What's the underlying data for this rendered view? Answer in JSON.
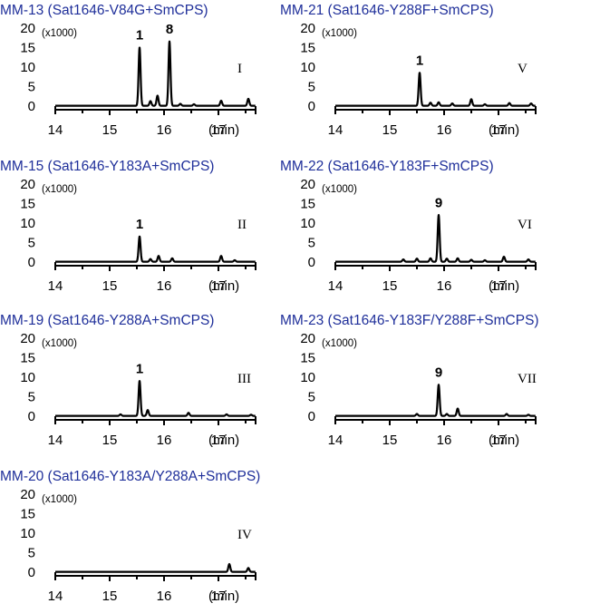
{
  "chart_data": [
    {
      "type": "line",
      "title": "MM-13 (Sat1646-V84G+SmCPS)",
      "panel_label": "I",
      "x_ticks": [
        "14",
        "15",
        "16",
        "17"
      ],
      "x_unit": "(min)",
      "xlim": [
        14,
        19
      ],
      "y_ticks": [
        "0",
        "5",
        "10",
        "15",
        "20"
      ],
      "y_scale": "(x1000)",
      "ylim": [
        0,
        20
      ],
      "peaks": [
        {
          "x": 15.55,
          "y": 15.0,
          "label": "1"
        },
        {
          "x": 15.75,
          "y": 1.2
        },
        {
          "x": 15.88,
          "y": 2.6
        },
        {
          "x": 16.1,
          "y": 16.5,
          "label": "8"
        },
        {
          "x": 16.3,
          "y": 0.5
        },
        {
          "x": 16.55,
          "y": 0.4
        },
        {
          "x": 17.05,
          "y": 1.3
        },
        {
          "x": 17.55,
          "y": 1.8
        }
      ]
    },
    {
      "type": "line",
      "title": "MM-21 (Sat1646-Y288F+SmCPS)",
      "panel_label": "V",
      "x_ticks": [
        "14",
        "15",
        "16",
        "17"
      ],
      "x_unit": "(min)",
      "xlim": [
        14,
        19
      ],
      "y_ticks": [
        "0",
        "5",
        "10",
        "15",
        "20"
      ],
      "y_scale": "(x1000)",
      "ylim": [
        0,
        20
      ],
      "peaks": [
        {
          "x": 15.55,
          "y": 8.5,
          "label": "1"
        },
        {
          "x": 15.75,
          "y": 0.8
        },
        {
          "x": 15.9,
          "y": 0.9
        },
        {
          "x": 16.15,
          "y": 0.6
        },
        {
          "x": 16.5,
          "y": 1.7
        },
        {
          "x": 16.75,
          "y": 0.4
        },
        {
          "x": 17.2,
          "y": 0.7
        },
        {
          "x": 17.6,
          "y": 0.6
        }
      ]
    },
    {
      "type": "line",
      "title": "MM-15 (Sat1646-Y183A+SmCPS)",
      "panel_label": "II",
      "x_ticks": [
        "14",
        "15",
        "16",
        "17"
      ],
      "x_unit": "(min)",
      "xlim": [
        14,
        19
      ],
      "y_ticks": [
        "0",
        "5",
        "10",
        "15",
        "20"
      ],
      "y_scale": "(x1000)",
      "ylim": [
        0,
        20
      ],
      "peaks": [
        {
          "x": 15.55,
          "y": 6.5,
          "label": "1"
        },
        {
          "x": 15.75,
          "y": 0.7
        },
        {
          "x": 15.9,
          "y": 1.5
        },
        {
          "x": 16.15,
          "y": 0.9
        },
        {
          "x": 17.05,
          "y": 1.5
        },
        {
          "x": 17.3,
          "y": 0.4
        }
      ]
    },
    {
      "type": "line",
      "title": "MM-22 (Sat1646-Y183F+SmCPS)",
      "panel_label": "VI",
      "x_ticks": [
        "14",
        "15",
        "16",
        "17"
      ],
      "x_unit": "(min)",
      "xlim": [
        14,
        19
      ],
      "y_ticks": [
        "0",
        "5",
        "10",
        "15",
        "20"
      ],
      "y_scale": "(x1000)",
      "ylim": [
        0,
        20
      ],
      "peaks": [
        {
          "x": 15.25,
          "y": 0.6
        },
        {
          "x": 15.5,
          "y": 0.8
        },
        {
          "x": 15.75,
          "y": 0.9
        },
        {
          "x": 15.9,
          "y": 12.0,
          "label": "9"
        },
        {
          "x": 16.05,
          "y": 0.8
        },
        {
          "x": 16.25,
          "y": 0.9
        },
        {
          "x": 16.5,
          "y": 0.5
        },
        {
          "x": 16.75,
          "y": 0.4
        },
        {
          "x": 17.1,
          "y": 1.3
        },
        {
          "x": 17.55,
          "y": 0.6
        }
      ]
    },
    {
      "type": "line",
      "title": "MM-19 (Sat1646-Y288A+SmCPS)",
      "panel_label": "III",
      "x_ticks": [
        "14",
        "15",
        "16",
        "17"
      ],
      "x_unit": "(min)",
      "xlim": [
        14,
        19
      ],
      "y_ticks": [
        "0",
        "5",
        "10",
        "15",
        "20"
      ],
      "y_scale": "(x1000)",
      "ylim": [
        0,
        20
      ],
      "peaks": [
        {
          "x": 15.2,
          "y": 0.4
        },
        {
          "x": 15.55,
          "y": 9.0,
          "label": "1"
        },
        {
          "x": 15.7,
          "y": 1.5
        },
        {
          "x": 16.45,
          "y": 0.8
        },
        {
          "x": 17.15,
          "y": 0.4
        },
        {
          "x": 17.6,
          "y": 0.3
        }
      ]
    },
    {
      "type": "line",
      "title": "MM-23 (Sat1646-Y183F/Y288F+SmCPS)",
      "panel_label": "VII",
      "x_ticks": [
        "14",
        "15",
        "16",
        "17"
      ],
      "x_unit": "(min)",
      "xlim": [
        14,
        19
      ],
      "y_ticks": [
        "0",
        "5",
        "10",
        "15",
        "20"
      ],
      "y_scale": "(x1000)",
      "ylim": [
        0,
        20
      ],
      "peaks": [
        {
          "x": 15.5,
          "y": 0.5
        },
        {
          "x": 15.9,
          "y": 8.0,
          "label": "9"
        },
        {
          "x": 16.05,
          "y": 0.5
        },
        {
          "x": 16.25,
          "y": 1.9
        },
        {
          "x": 17.15,
          "y": 0.5
        },
        {
          "x": 17.55,
          "y": 0.3
        }
      ]
    },
    {
      "type": "line",
      "title": "MM-20 (Sat1646-Y183A/Y288A+SmCPS)",
      "panel_label": "IV",
      "x_ticks": [
        "14",
        "15",
        "16",
        "17"
      ],
      "x_unit": "(min)",
      "xlim": [
        14,
        19
      ],
      "y_ticks": [
        "0",
        "5",
        "10",
        "15",
        "20"
      ],
      "y_scale": "(x1000)",
      "ylim": [
        0,
        20
      ],
      "peaks": [
        {
          "x": 17.2,
          "y": 2.0
        },
        {
          "x": 17.55,
          "y": 1.0
        }
      ]
    }
  ]
}
